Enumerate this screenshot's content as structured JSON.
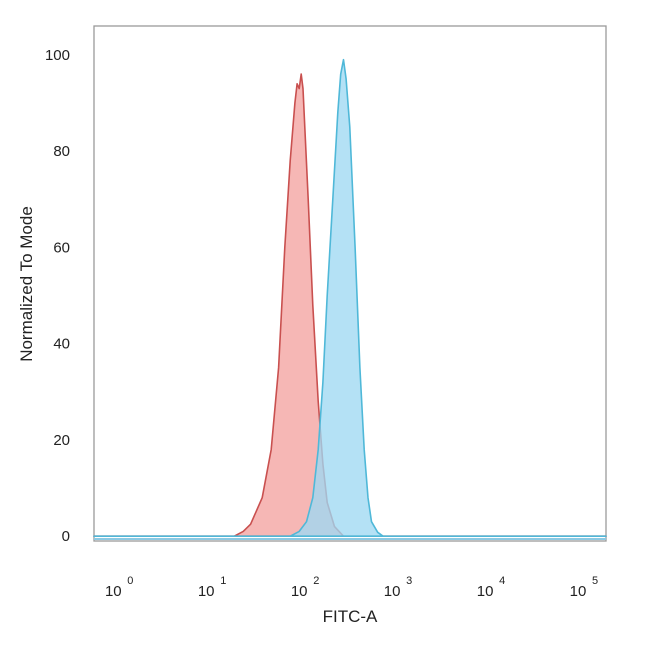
{
  "chart_data": {
    "type": "area",
    "title": "",
    "xlabel": "FITC-A",
    "ylabel": "Normalized To Mode",
    "x_scale": "log",
    "xlim": [
      0.62,
      200000
    ],
    "ylim": [
      -1,
      106
    ],
    "grid": false,
    "legend": "none",
    "x_ticks": [
      {
        "base": "10",
        "exp": "0",
        "value": 1
      },
      {
        "base": "10",
        "exp": "1",
        "value": 10
      },
      {
        "base": "10",
        "exp": "2",
        "value": 100
      },
      {
        "base": "10",
        "exp": "3",
        "value": 1000
      },
      {
        "base": "10",
        "exp": "4",
        "value": 10000
      },
      {
        "base": "10",
        "exp": "5",
        "value": 100000
      }
    ],
    "y_ticks": [
      "0",
      "20",
      "40",
      "60",
      "80",
      "100"
    ],
    "series": [
      {
        "fill": "#f4a3a0",
        "stroke": "#c9504f",
        "x": [
          0.62,
          20,
          25,
          30,
          40,
          50,
          60,
          70,
          80,
          90,
          95,
          100,
          105,
          110,
          115,
          125,
          140,
          160,
          180,
          200,
          240,
          300,
          200000
        ],
        "y": [
          0,
          0,
          1,
          2.5,
          8,
          18,
          35,
          60,
          78,
          90,
          94,
          93,
          96,
          93,
          85,
          70,
          48,
          28,
          15,
          7,
          2,
          0,
          0
        ]
      },
      {
        "fill": "#9fd8f2",
        "stroke": "#4fb8d8",
        "x": [
          0.62,
          80,
          100,
          120,
          140,
          160,
          180,
          200,
          230,
          260,
          280,
          300,
          320,
          350,
          400,
          450,
          500,
          550,
          600,
          700,
          800,
          200000
        ],
        "y": [
          0,
          0,
          1,
          3,
          8,
          18,
          32,
          50,
          70,
          88,
          96,
          99,
          95,
          85,
          60,
          35,
          18,
          8,
          3,
          0.8,
          0,
          0
        ]
      }
    ]
  }
}
